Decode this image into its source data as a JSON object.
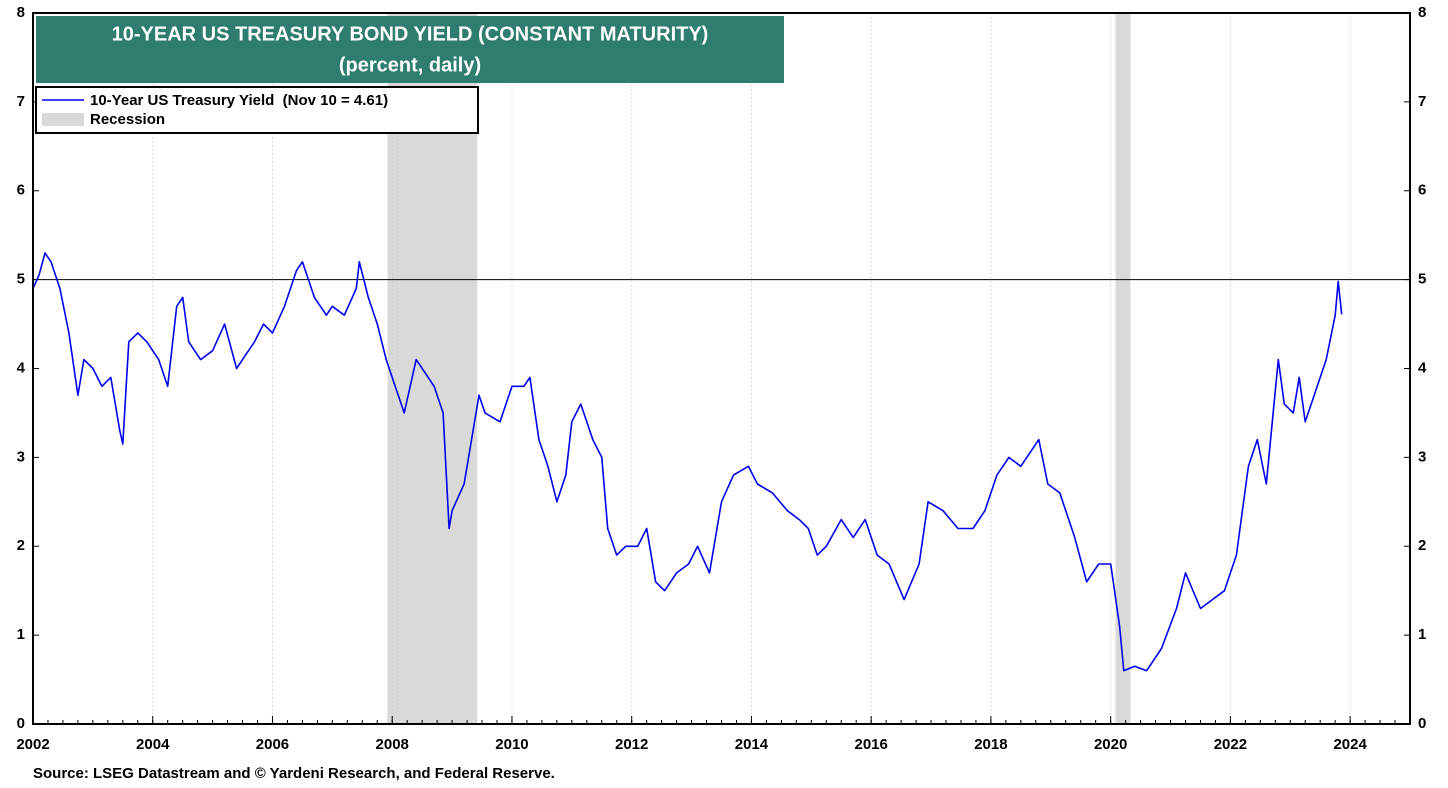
{
  "chart_data": {
    "type": "line",
    "title": "10-YEAR US TREASURY BOND YIELD (CONSTANT MATURITY)",
    "subtitle": "(percent, daily)",
    "source": "Source: LSEG Datastream and © Yardeni Research, and Federal Reserve.",
    "x": [
      2002.0,
      2002.1,
      2002.2,
      2002.3,
      2002.45,
      2002.6,
      2002.75,
      2002.85,
      2003.0,
      2003.15,
      2003.3,
      2003.45,
      2003.5,
      2003.6,
      2003.75,
      2003.9,
      2004.1,
      2004.25,
      2004.4,
      2004.5,
      2004.6,
      2004.8,
      2005.0,
      2005.2,
      2005.4,
      2005.5,
      2005.7,
      2005.85,
      2006.0,
      2006.2,
      2006.4,
      2006.5,
      2006.7,
      2006.9,
      2007.0,
      2007.2,
      2007.4,
      2007.45,
      2007.6,
      2007.75,
      2007.9,
      2008.0,
      2008.2,
      2008.4,
      2008.5,
      2008.7,
      2008.85,
      2008.95,
      2009.0,
      2009.2,
      2009.45,
      2009.55,
      2009.8,
      2010.0,
      2010.2,
      2010.3,
      2010.45,
      2010.6,
      2010.75,
      2010.9,
      2011.0,
      2011.15,
      2011.35,
      2011.5,
      2011.6,
      2011.75,
      2011.9,
      2012.1,
      2012.25,
      2012.4,
      2012.55,
      2012.75,
      2012.95,
      2013.1,
      2013.3,
      2013.5,
      2013.7,
      2013.95,
      2014.1,
      2014.35,
      2014.6,
      2014.8,
      2014.95,
      2015.1,
      2015.25,
      2015.5,
      2015.7,
      2015.9,
      2016.1,
      2016.3,
      2016.55,
      2016.8,
      2016.95,
      2017.2,
      2017.45,
      2017.7,
      2017.9,
      2018.1,
      2018.3,
      2018.5,
      2018.8,
      2018.95,
      2019.15,
      2019.4,
      2019.6,
      2019.8,
      2020.0,
      2020.15,
      2020.22,
      2020.4,
      2020.6,
      2020.85,
      2021.1,
      2021.25,
      2021.5,
      2021.7,
      2021.9,
      2022.1,
      2022.3,
      2022.45,
      2022.6,
      2022.8,
      2022.9,
      2023.05,
      2023.15,
      2023.25,
      2023.4,
      2023.6,
      2023.75,
      2023.8,
      2023.86
    ],
    "series": [
      {
        "name": "10-Year US Treasury Yield  (Nov 10 = 4.61)",
        "color": "#0000ee",
        "values": [
          4.9,
          5.05,
          5.3,
          5.2,
          4.9,
          4.4,
          3.7,
          4.1,
          4.0,
          3.8,
          3.9,
          3.3,
          3.15,
          4.3,
          4.4,
          4.3,
          4.1,
          3.8,
          4.7,
          4.8,
          4.3,
          4.1,
          4.2,
          4.5,
          4.0,
          4.1,
          4.3,
          4.5,
          4.4,
          4.7,
          5.1,
          5.2,
          4.8,
          4.6,
          4.7,
          4.6,
          4.9,
          5.2,
          4.8,
          4.5,
          4.1,
          3.9,
          3.5,
          4.1,
          4.0,
          3.8,
          3.5,
          2.2,
          2.4,
          2.7,
          3.7,
          3.5,
          3.4,
          3.8,
          3.8,
          3.9,
          3.2,
          2.9,
          2.5,
          2.8,
          3.4,
          3.6,
          3.2,
          3.0,
          2.2,
          1.9,
          2.0,
          2.0,
          2.2,
          1.6,
          1.5,
          1.7,
          1.8,
          2.0,
          1.7,
          2.5,
          2.8,
          2.9,
          2.7,
          2.6,
          2.4,
          2.3,
          2.2,
          1.9,
          2.0,
          2.3,
          2.1,
          2.3,
          1.9,
          1.8,
          1.4,
          1.8,
          2.5,
          2.4,
          2.2,
          2.2,
          2.4,
          2.8,
          3.0,
          2.9,
          3.2,
          2.7,
          2.6,
          2.1,
          1.6,
          1.8,
          1.8,
          1.1,
          0.6,
          0.65,
          0.6,
          0.85,
          1.3,
          1.7,
          1.3,
          1.4,
          1.5,
          1.9,
          2.9,
          3.2,
          2.7,
          4.1,
          3.6,
          3.5,
          3.9,
          3.4,
          3.7,
          4.1,
          4.6,
          4.98,
          4.61
        ]
      }
    ],
    "recessions": {
      "name": "Recession",
      "color": "#d9d9d9",
      "periods": [
        [
          2007.92,
          2009.42
        ],
        [
          2020.08,
          2020.33
        ]
      ]
    },
    "reference_line": 5,
    "xlim": [
      2002,
      2025
    ],
    "xticks": [
      2002,
      2004,
      2006,
      2008,
      2010,
      2012,
      2014,
      2016,
      2018,
      2020,
      2022,
      2024
    ],
    "ylim": [
      0,
      8
    ],
    "yticks": [
      0,
      1,
      2,
      3,
      4,
      5,
      6,
      7,
      8
    ],
    "y2lim": [
      0,
      8
    ],
    "y2ticks": [
      0,
      1,
      2,
      3,
      4,
      5,
      6,
      7,
      8
    ],
    "grid": "x",
    "legend": "upper left"
  }
}
